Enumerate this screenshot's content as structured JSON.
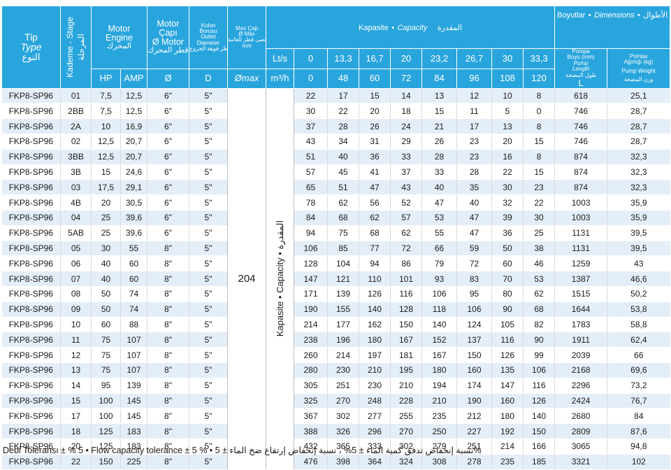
{
  "header": {
    "tip": "Tip",
    "type": "Type",
    "type_ar": "النوع",
    "stage": "Kademe - Stage",
    "stage_ar": "المرحلة",
    "motor_engine_1": "Motor",
    "motor_engine_2": "Engine",
    "motor_engine_ar": "المحرك",
    "hp": "HP",
    "amp": "AMP",
    "motor_capi_1": "Motor",
    "motor_capi_2": "Çapı",
    "motor_capi_3": "Ø Motor",
    "motor_capi_ar": "قطر المحرك",
    "dia_sym": "Ø",
    "kolon_1": "Kolon",
    "kolon_2": "Borusu",
    "kolon_3": "Outlet",
    "kolon_4": "Diameter",
    "kolon_ar": "قطر فوهة الخروج",
    "d_sym": "D",
    "maxcap_1": "Max Çap",
    "maxcap_2": "Ø Max",
    "maxcap_ar": "أقصى قطر للعامة",
    "maxcap_unit": "mm",
    "omax": "Ømax",
    "ls": "Lt/s",
    "m3h": "m³/h",
    "capacity_tr": "Kapasite",
    "capacity_bullet": "•",
    "capacity_en": "Capacity",
    "capacity_ar": "المقدرة",
    "flow_ls": [
      "0",
      "13,3",
      "16,7",
      "20",
      "23,2",
      "26,7",
      "30",
      "33,3"
    ],
    "flow_m3h": [
      "0",
      "48",
      "60",
      "72",
      "84",
      "96",
      "108",
      "120"
    ],
    "dims_tr": "Boyutlar",
    "dims_en": "Dimensions",
    "dims_ar": "الأطوال",
    "pompa_boyu_1": "Pompa",
    "pompa_boyu_2": "Boyu (mm)",
    "pump_length_1": "Pump",
    "pump_length_2": "Length",
    "pump_length_ar": "طول المضخة",
    "l_sym": "L",
    "pompa_agirlik_1": "Pompa",
    "pompa_agirlik_2": "Ağırlığı (kg)",
    "pump_weight": "Pump Weight",
    "pump_weight_ar": "وزن المضخة"
  },
  "merged": {
    "max_value": "204",
    "capacity_vertical": "Kapasite • Capacity • المقدرة"
  },
  "rows": [
    {
      "type": "FKP8-SP96",
      "stage": "01",
      "hp": "7,5",
      "amp": "12,5",
      "motor": "6\"",
      "outlet": "5\"",
      "flows": [
        "22",
        "17",
        "15",
        "14",
        "13",
        "12",
        "10",
        "8"
      ],
      "length": "618",
      "weight": "25,1"
    },
    {
      "type": "FKP8-SP96",
      "stage": "2BB",
      "hp": "7,5",
      "amp": "12,5",
      "motor": "6\"",
      "outlet": "5\"",
      "flows": [
        "30",
        "22",
        "20",
        "18",
        "15",
        "11",
        "5",
        "0"
      ],
      "length": "746",
      "weight": "28,7"
    },
    {
      "type": "FKP8-SP96",
      "stage": "2A",
      "hp": "10",
      "amp": "16,9",
      "motor": "6\"",
      "outlet": "5\"",
      "flows": [
        "37",
        "28",
        "26",
        "24",
        "21",
        "17",
        "13",
        "8"
      ],
      "length": "746",
      "weight": "28,7"
    },
    {
      "type": "FKP8-SP96",
      "stage": "02",
      "hp": "12,5",
      "amp": "20,7",
      "motor": "6\"",
      "outlet": "5\"",
      "flows": [
        "43",
        "34",
        "31",
        "29",
        "26",
        "23",
        "20",
        "15"
      ],
      "length": "746",
      "weight": "28,7"
    },
    {
      "type": "FKP8-SP96",
      "stage": "3BB",
      "hp": "12,5",
      "amp": "20,7",
      "motor": "6\"",
      "outlet": "5\"",
      "flows": [
        "51",
        "40",
        "36",
        "33",
        "28",
        "23",
        "16",
        "8"
      ],
      "length": "874",
      "weight": "32,3"
    },
    {
      "type": "FKP8-SP96",
      "stage": "3B",
      "hp": "15",
      "amp": "24,6",
      "motor": "6\"",
      "outlet": "5\"",
      "flows": [
        "57",
        "45",
        "41",
        "37",
        "33",
        "28",
        "22",
        "15"
      ],
      "length": "874",
      "weight": "32,3"
    },
    {
      "type": "FKP8-SP96",
      "stage": "03",
      "hp": "17,5",
      "amp": "29,1",
      "motor": "6\"",
      "outlet": "5\"",
      "flows": [
        "65",
        "51",
        "47",
        "43",
        "40",
        "35",
        "30",
        "23"
      ],
      "length": "874",
      "weight": "32,3"
    },
    {
      "type": "FKP8-SP96",
      "stage": "4B",
      "hp": "20",
      "amp": "30,5",
      "motor": "6\"",
      "outlet": "5\"",
      "flows": [
        "78",
        "62",
        "56",
        "52",
        "47",
        "40",
        "32",
        "22"
      ],
      "length": "1003",
      "weight": "35,9"
    },
    {
      "type": "FKP8-SP96",
      "stage": "04",
      "hp": "25",
      "amp": "39,6",
      "motor": "6\"",
      "outlet": "5\"",
      "flows": [
        "84",
        "68",
        "62",
        "57",
        "53",
        "47",
        "39",
        "30"
      ],
      "length": "1003",
      "weight": "35,9"
    },
    {
      "type": "FKP8-SP96",
      "stage": "5AB",
      "hp": "25",
      "amp": "39,6",
      "motor": "6\"",
      "outlet": "5\"",
      "flows": [
        "94",
        "75",
        "68",
        "62",
        "55",
        "47",
        "36",
        "25"
      ],
      "length": "1131",
      "weight": "39,5"
    },
    {
      "type": "FKP8-SP96",
      "stage": "05",
      "hp": "30",
      "amp": "55",
      "motor": "8\"",
      "outlet": "5\"",
      "flows": [
        "106",
        "85",
        "77",
        "72",
        "66",
        "59",
        "50",
        "38"
      ],
      "length": "1131",
      "weight": "39,5"
    },
    {
      "type": "FKP8-SP96",
      "stage": "06",
      "hp": "40",
      "amp": "60",
      "motor": "8\"",
      "outlet": "5\"",
      "flows": [
        "128",
        "104",
        "94",
        "86",
        "79",
        "72",
        "60",
        "46"
      ],
      "length": "1259",
      "weight": "43"
    },
    {
      "type": "FKP8-SP96",
      "stage": "07",
      "hp": "40",
      "amp": "60",
      "motor": "8\"",
      "outlet": "5\"",
      "flows": [
        "147",
        "121",
        "110",
        "101",
        "93",
        "83",
        "70",
        "53"
      ],
      "length": "1387",
      "weight": "46,6"
    },
    {
      "type": "FKP8-SP96",
      "stage": "08",
      "hp": "50",
      "amp": "74",
      "motor": "8\"",
      "outlet": "5\"",
      "flows": [
        "171",
        "139",
        "126",
        "116",
        "106",
        "95",
        "80",
        "62"
      ],
      "length": "1515",
      "weight": "50,2"
    },
    {
      "type": "FKP8-SP96",
      "stage": "09",
      "hp": "50",
      "amp": "74",
      "motor": "8\"",
      "outlet": "5\"",
      "flows": [
        "190",
        "155",
        "140",
        "128",
        "118",
        "106",
        "90",
        "68"
      ],
      "length": "1644",
      "weight": "53,8"
    },
    {
      "type": "FKP8-SP96",
      "stage": "10",
      "hp": "60",
      "amp": "88",
      "motor": "8\"",
      "outlet": "5\"",
      "flows": [
        "214",
        "177",
        "162",
        "150",
        "140",
        "124",
        "105",
        "82"
      ],
      "length": "1783",
      "weight": "58,8"
    },
    {
      "type": "FKP8-SP96",
      "stage": "11",
      "hp": "75",
      "amp": "107",
      "motor": "8\"",
      "outlet": "5\"",
      "flows": [
        "238",
        "196",
        "180",
        "167",
        "152",
        "137",
        "116",
        "90"
      ],
      "length": "1911",
      "weight": "62,4"
    },
    {
      "type": "FKP8-SP96",
      "stage": "12",
      "hp": "75",
      "amp": "107",
      "motor": "8\"",
      "outlet": "5\"",
      "flows": [
        "260",
        "214",
        "197",
        "181",
        "167",
        "150",
        "126",
        "99"
      ],
      "length": "2039",
      "weight": "66"
    },
    {
      "type": "FKP8-SP96",
      "stage": "13",
      "hp": "75",
      "amp": "107",
      "motor": "8\"",
      "outlet": "5\"",
      "flows": [
        "280",
        "230",
        "210",
        "195",
        "180",
        "160",
        "135",
        "106"
      ],
      "length": "2168",
      "weight": "69,6"
    },
    {
      "type": "FKP8-SP96",
      "stage": "14",
      "hp": "95",
      "amp": "139",
      "motor": "8\"",
      "outlet": "5\"",
      "flows": [
        "305",
        "251",
        "230",
        "210",
        "194",
        "174",
        "147",
        "116"
      ],
      "length": "2296",
      "weight": "73,2"
    },
    {
      "type": "FKP8-SP96",
      "stage": "15",
      "hp": "100",
      "amp": "145",
      "motor": "8\"",
      "outlet": "5\"",
      "flows": [
        "325",
        "270",
        "248",
        "228",
        "210",
        "190",
        "160",
        "126"
      ],
      "length": "2424",
      "weight": "76,7"
    },
    {
      "type": "FKP8-SP96",
      "stage": "17",
      "hp": "100",
      "amp": "145",
      "motor": "8\"",
      "outlet": "5\"",
      "flows": [
        "367",
        "302",
        "277",
        "255",
        "235",
        "212",
        "180",
        "140"
      ],
      "length": "2680",
      "weight": "84"
    },
    {
      "type": "FKP8-SP96",
      "stage": "18",
      "hp": "125",
      "amp": "183",
      "motor": "8\"",
      "outlet": "5\"",
      "flows": [
        "388",
        "326",
        "296",
        "270",
        "250",
        "227",
        "192",
        "150"
      ],
      "length": "2809",
      "weight": "87,6"
    },
    {
      "type": "FKP8-SP96",
      "stage": "20",
      "hp": "125",
      "amp": "183",
      "motor": "8\"",
      "outlet": "5\"",
      "flows": [
        "432",
        "365",
        "333",
        "302",
        "279",
        "251",
        "214",
        "166"
      ],
      "length": "3065",
      "weight": "94,8"
    },
    {
      "type": "FKP8-SP96",
      "stage": "22",
      "hp": "150",
      "amp": "225",
      "motor": "8\"",
      "outlet": "5\"",
      "flows": [
        "476",
        "398",
        "364",
        "324",
        "308",
        "278",
        "235",
        "185"
      ],
      "length": "3321",
      "weight": "102"
    }
  ],
  "footer": {
    "text": "Debi Toleransı ± % 5 • Flow capacity tolerance ± 5 % • نسبة إنخفاض تدفق كمية الماء ± 5% ، نسبة إنخفاض إرتفاع ضخ الماء ± 5%"
  }
}
